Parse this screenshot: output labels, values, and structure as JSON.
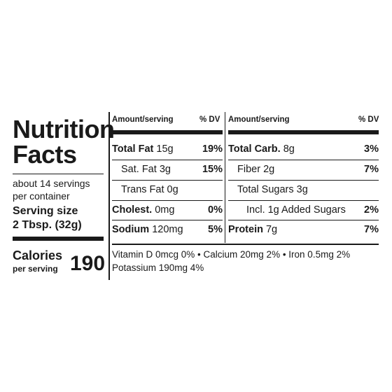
{
  "left": {
    "title_line1": "Nutrition",
    "title_line2": "Facts",
    "servings_line1": "about 14 servings",
    "servings_line2": "per container",
    "serving_size_label": "Serving size",
    "serving_size_value": "2 Tbsp. (32g)",
    "calories_label": "Calories",
    "calories_sub": "per serving",
    "calories_value": "190"
  },
  "headers": {
    "amount_serving_left": "Amount/serving",
    "dv_left": "% DV",
    "amount_serving_right": "Amount/serving",
    "dv_right": "% DV"
  },
  "left_col": [
    {
      "name": "Total Fat",
      "amount": "15g",
      "dv": "19%",
      "bold": true,
      "indent": 0
    },
    {
      "name": "Sat. Fat",
      "amount": "3g",
      "dv": "15%",
      "bold": false,
      "indent": 1
    },
    {
      "name": "Trans Fat",
      "amount": "0g",
      "dv": "",
      "bold": false,
      "indent": 1
    },
    {
      "name": "Cholest.",
      "amount": "0mg",
      "dv": "0%",
      "bold": true,
      "indent": 0
    },
    {
      "name": "Sodium",
      "amount": "120mg",
      "dv": "5%",
      "bold": true,
      "indent": 0
    }
  ],
  "right_col": [
    {
      "name": "Total Carb.",
      "amount": "8g",
      "dv": "3%",
      "bold": true,
      "indent": 0
    },
    {
      "name": "Fiber",
      "amount": "2g",
      "dv": "7%",
      "bold": false,
      "indent": 1
    },
    {
      "name": "Total Sugars",
      "amount": "3g",
      "dv": "",
      "bold": false,
      "indent": 1
    },
    {
      "name": "Incl. 1g Added Sugars",
      "amount": "",
      "dv": "2%",
      "bold": false,
      "indent": 2
    },
    {
      "name": "Protein",
      "amount": "7g",
      "dv": "7%",
      "bold": true,
      "indent": 0
    }
  ],
  "footer": {
    "line1": "Vitamin D 0mcg 0%  •  Calcium 20mg 2%  •  Iron 0.5mg 2%",
    "line2": "Potassium 190mg 4%"
  }
}
